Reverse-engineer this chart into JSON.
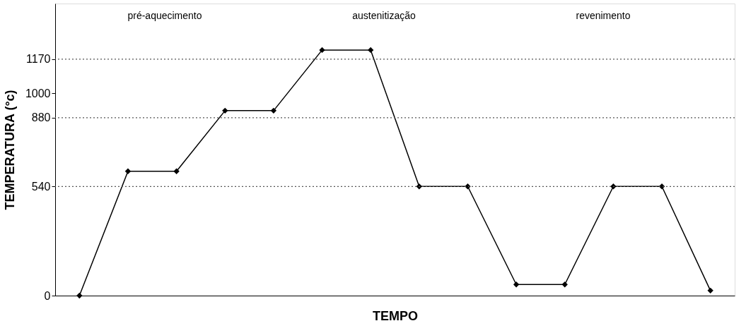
{
  "chart_data": {
    "type": "line",
    "xlabel": "TEMPO",
    "ylabel": "TEMPERATURA (°c)",
    "categories": [
      null,
      null,
      null,
      null,
      null,
      null,
      null,
      null,
      null,
      null,
      null,
      null,
      null,
      null
    ],
    "series": [
      {
        "color": "#000000",
        "values": [
          0,
          615,
          615,
          915,
          915,
          1215,
          1215,
          540,
          540,
          55,
          55,
          540,
          540,
          25
        ]
      }
    ],
    "ylim": [
      0,
      1445
    ],
    "yticks": [
      0,
      540,
      880,
      1000,
      1170
    ],
    "ref_lines": [
      {
        "axis": "y",
        "value": 540,
        "line_style": "dotted",
        "color": "#555555"
      },
      {
        "axis": "y",
        "value": 880,
        "line_style": "dotted",
        "color": "#555555"
      },
      {
        "axis": "y",
        "value": 1170,
        "line_style": "dotted",
        "color": "#555555"
      }
    ],
    "annotations": [
      "pré-aquecimento",
      "austenitização",
      "revenimento"
    ],
    "marker": "diamond",
    "line_style": "solid",
    "grid": false
  }
}
